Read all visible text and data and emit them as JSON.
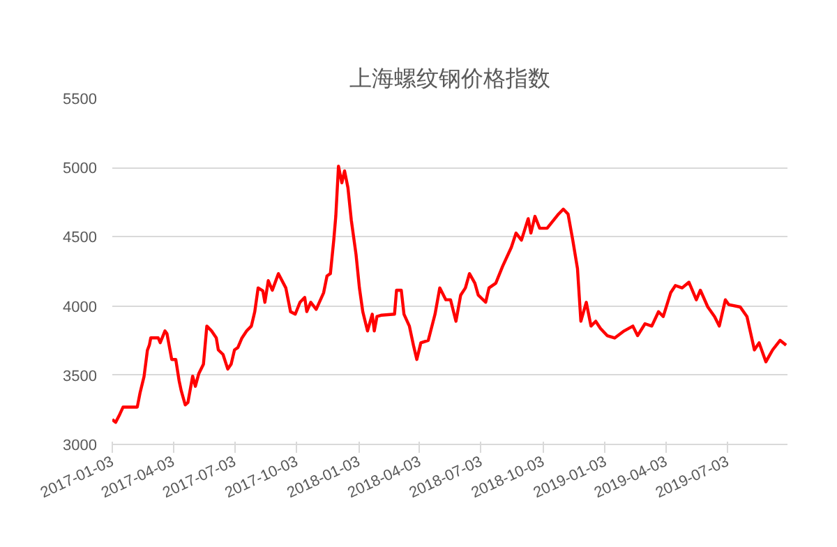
{
  "chart_data": {
    "type": "line",
    "title": "上海螺纹钢价格指数",
    "x": [
      "2017-01-03",
      "2017-01-08",
      "2017-01-14",
      "2017-01-19",
      "2017-02-09",
      "2017-02-13",
      "2017-02-19",
      "2017-02-24",
      "2017-02-27",
      "2017-03-01",
      "2017-03-12",
      "2017-03-15",
      "2017-03-22",
      "2017-03-25",
      "2017-04-01",
      "2017-04-07",
      "2017-04-12",
      "2017-04-15",
      "2017-04-21",
      "2017-04-25",
      "2017-05-02",
      "2017-05-06",
      "2017-05-11",
      "2017-05-18",
      "2017-05-23",
      "2017-05-30",
      "2017-06-06",
      "2017-06-09",
      "2017-06-16",
      "2017-06-23",
      "2017-06-28",
      "2017-07-03",
      "2017-07-08",
      "2017-07-14",
      "2017-07-21",
      "2017-07-28",
      "2017-08-02",
      "2017-08-07",
      "2017-08-14",
      "2017-08-17",
      "2017-08-22",
      "2017-08-28",
      "2017-09-06",
      "2017-09-17",
      "2017-09-24",
      "2017-10-01",
      "2017-10-08",
      "2017-10-15",
      "2017-10-18",
      "2017-10-24",
      "2017-11-01",
      "2017-11-12",
      "2017-11-17",
      "2017-11-22",
      "2017-11-27",
      "2017-11-30",
      "2017-12-04",
      "2017-12-09",
      "2017-12-13",
      "2017-12-18",
      "2017-12-23",
      "2017-12-30",
      "2018-01-04",
      "2018-01-09",
      "2018-01-16",
      "2018-01-23",
      "2018-01-26",
      "2018-01-30",
      "2018-02-06",
      "2018-02-25",
      "2018-02-28",
      "2018-03-07",
      "2018-03-11",
      "2018-03-19",
      "2018-03-25",
      "2018-03-30",
      "2018-04-05",
      "2018-04-16",
      "2018-04-26",
      "2018-05-03",
      "2018-05-12",
      "2018-05-19",
      "2018-05-27",
      "2018-06-03",
      "2018-06-10",
      "2018-06-16",
      "2018-06-24",
      "2018-06-29",
      "2018-07-10",
      "2018-07-15",
      "2018-07-25",
      "2018-08-04",
      "2018-08-17",
      "2018-08-24",
      "2018-09-01",
      "2018-09-11",
      "2018-09-15",
      "2018-09-21",
      "2018-09-28",
      "2018-10-09",
      "2018-10-26",
      "2018-11-02",
      "2018-11-09",
      "2018-11-16",
      "2018-11-23",
      "2018-11-28",
      "2018-12-06",
      "2018-12-13",
      "2018-12-20",
      "2018-12-27",
      "2019-01-06",
      "2019-01-17",
      "2019-01-31",
      "2019-02-13",
      "2019-02-20",
      "2019-03-03",
      "2019-03-13",
      "2019-03-23",
      "2019-03-30",
      "2019-04-10",
      "2019-04-17",
      "2019-04-27",
      "2019-05-07",
      "2019-05-18",
      "2019-05-24",
      "2019-06-04",
      "2019-06-14",
      "2019-06-21",
      "2019-06-30",
      "2019-07-05",
      "2019-07-22",
      "2019-08-01",
      "2019-08-12",
      "2019-08-19",
      "2019-08-29",
      "2019-09-08",
      "2019-09-19",
      "2019-09-28"
    ],
    "series": [
      {
        "color": "#ff0000",
        "values": [
          3180,
          3160,
          3217,
          3270,
          3270,
          3370,
          3490,
          3680,
          3720,
          3770,
          3770,
          3735,
          3820,
          3800,
          3614,
          3614,
          3459,
          3390,
          3286,
          3303,
          3493,
          3420,
          3510,
          3580,
          3855,
          3820,
          3770,
          3683,
          3650,
          3545,
          3580,
          3683,
          3700,
          3769,
          3820,
          3855,
          3959,
          4131,
          4110,
          4027,
          4183,
          4114,
          4234,
          4131,
          3959,
          3941,
          4027,
          4062,
          3960,
          4027,
          3976,
          4096,
          4217,
          4234,
          4476,
          4648,
          5010,
          4890,
          4976,
          4855,
          4620,
          4372,
          4131,
          3959,
          3820,
          3941,
          3820,
          3924,
          3934,
          3941,
          4114,
          4114,
          3941,
          3855,
          3717,
          3614,
          3734,
          3752,
          3941,
          4131,
          4045,
          4045,
          3890,
          4079,
          4131,
          4234,
          4165,
          4079,
          4027,
          4131,
          4165,
          4286,
          4424,
          4527,
          4476,
          4631,
          4527,
          4648,
          4562,
          4562,
          4665,
          4700,
          4665,
          4476,
          4269,
          3890,
          4027,
          3855,
          3890,
          3838,
          3786,
          3769,
          3820,
          3855,
          3786,
          3872,
          3855,
          3959,
          3924,
          4096,
          4148,
          4131,
          4172,
          4045,
          4114,
          3993,
          3924,
          3855,
          4045,
          4010,
          3993,
          3924,
          3683,
          3734,
          3597,
          3683,
          3752,
          3717
        ]
      }
    ],
    "xlim": [
      "2017-01-03",
      "2019-09-30"
    ],
    "xticks": [
      "2017-01-03",
      "2017-04-03",
      "2017-07-03",
      "2017-10-03",
      "2018-01-03",
      "2018-04-03",
      "2018-07-03",
      "2018-10-03",
      "2019-01-03",
      "2019-04-03",
      "2019-07-03"
    ],
    "ylim": [
      3000,
      5500
    ],
    "yticks": [
      3000,
      3500,
      4000,
      4500,
      5000,
      5500
    ],
    "grid": "y",
    "marker": "none",
    "line_style": "solid"
  }
}
